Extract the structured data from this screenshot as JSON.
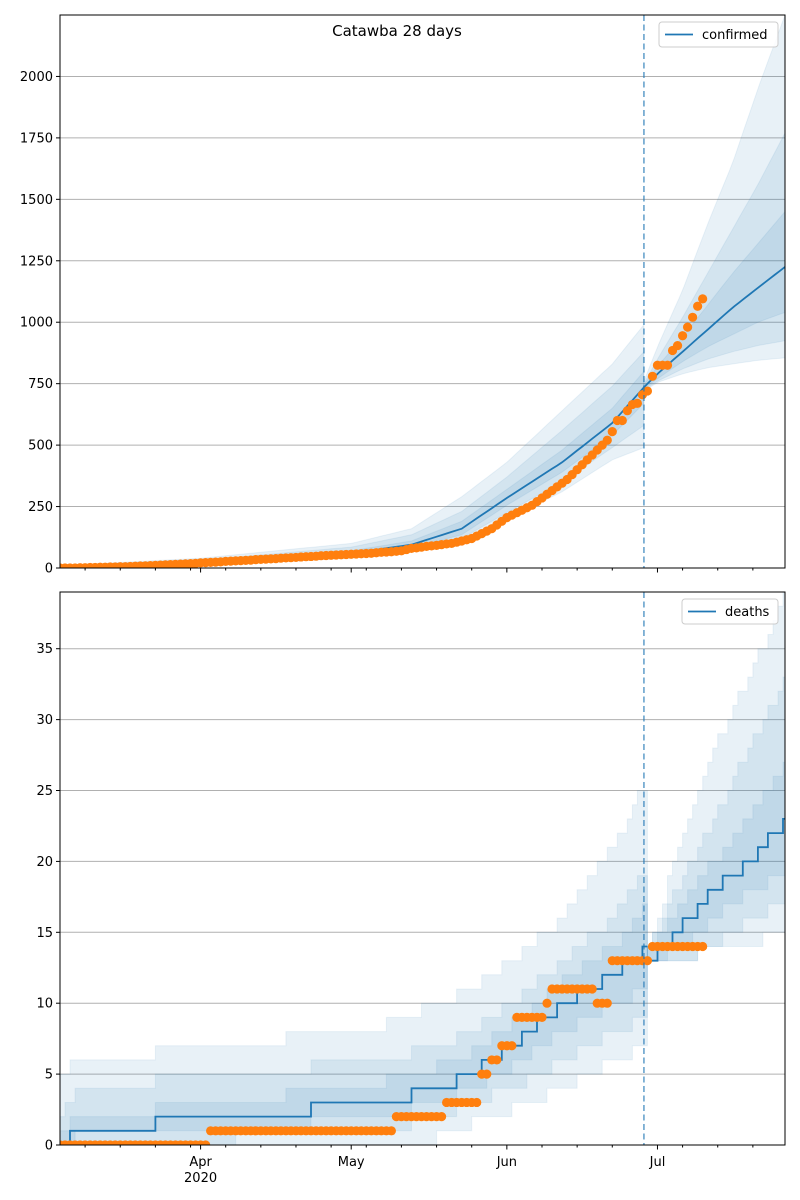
{
  "chart_data": [
    {
      "type": "line",
      "title": "Catawba 28 days",
      "x_origin_date": "2020-03-04",
      "x_unit": "days since origin",
      "xlim": [
        0,
        144.4
      ],
      "ylim": [
        0,
        2250
      ],
      "yticks": [
        0,
        250,
        500,
        750,
        1000,
        1250,
        1500,
        1750,
        2000
      ],
      "ytick_labels": [
        "0",
        "250",
        "500",
        "750",
        "1000",
        "1250",
        "1500",
        "1750",
        "2000"
      ],
      "grid": "horizontal",
      "legend": {
        "label": "confirmed",
        "placement": "top-right"
      },
      "forecast_start_day": 116.3,
      "stepped": false,
      "model_segments": [
        {
          "days": [
            0,
            28,
            58,
            70,
            80,
            89,
            100,
            110,
            116.3
          ],
          "median": [
            0,
            20,
            60,
            95,
            160,
            285,
            430,
            590,
            735
          ],
          "lo95": [
            0,
            10,
            40,
            65,
            110,
            200,
            310,
            440,
            490
          ],
          "lo80": [
            0,
            12,
            45,
            72,
            120,
            225,
            350,
            490,
            580
          ],
          "lo50": [
            0,
            16,
            52,
            82,
            135,
            255,
            390,
            540,
            670
          ],
          "hi50": [
            3,
            25,
            70,
            110,
            190,
            320,
            480,
            650,
            800
          ],
          "hi80": [
            6,
            32,
            85,
            135,
            230,
            370,
            560,
            740,
            880
          ],
          "hi95": [
            10,
            40,
            100,
            160,
            290,
            430,
            640,
            830,
            990
          ]
        },
        {
          "days": [
            116.3,
            119,
            124,
            129,
            134,
            139,
            144.4
          ],
          "median": [
            735,
            790,
            880,
            970,
            1060,
            1140,
            1225
          ],
          "lo95": [
            720,
            755,
            790,
            815,
            830,
            845,
            855
          ],
          "lo80": [
            725,
            760,
            810,
            850,
            880,
            905,
            925
          ],
          "lo50": [
            730,
            770,
            840,
            900,
            950,
            1000,
            1040
          ],
          "hi50": [
            745,
            820,
            940,
            1070,
            1200,
            1320,
            1450
          ],
          "hi80": [
            750,
            850,
            1020,
            1200,
            1380,
            1560,
            1770
          ],
          "hi95": [
            760,
            900,
            1130,
            1400,
            1650,
            1950,
            2250
          ]
        }
      ],
      "observed": [
        0,
        0,
        0,
        0,
        1,
        1,
        2,
        2,
        3,
        3,
        4,
        4,
        5,
        5,
        6,
        7,
        8,
        9,
        10,
        11,
        12,
        13,
        14,
        15,
        16,
        17,
        18,
        19,
        21,
        22,
        23,
        24,
        25,
        27,
        28,
        29,
        30,
        31,
        32,
        34,
        35,
        36,
        37,
        38,
        40,
        41,
        42,
        43,
        45,
        46,
        47,
        48,
        50,
        51,
        52,
        53,
        54,
        55,
        56,
        57,
        58,
        59,
        60,
        62,
        64,
        65,
        66,
        68,
        70,
        75,
        80,
        82,
        85,
        88,
        90,
        92,
        95,
        98,
        100,
        105,
        110,
        115,
        120,
        130,
        140,
        150,
        160,
        175,
        190,
        205,
        215,
        225,
        235,
        245,
        255,
        270,
        285,
        300,
        315,
        330,
        345,
        360,
        380,
        400,
        420,
        440,
        460,
        480,
        500,
        520,
        555,
        600,
        600,
        640,
        665,
        670,
        705,
        720,
        780,
        825,
        825,
        825,
        885,
        905,
        945,
        980,
        1020,
        1065,
        1095
      ]
    },
    {
      "type": "line",
      "title": "",
      "x_origin_date": "2020-03-04",
      "x_unit": "days since origin",
      "xlim": [
        0,
        144.4
      ],
      "ylim": [
        0,
        39
      ],
      "yticks": [
        0,
        5,
        10,
        15,
        20,
        25,
        30,
        35
      ],
      "ytick_labels": [
        "0",
        "5",
        "10",
        "15",
        "20",
        "25",
        "30",
        "35"
      ],
      "grid": "horizontal",
      "legend": {
        "label": "deaths",
        "placement": "top-right"
      },
      "forecast_start_day": 116.3,
      "stepped": true,
      "model_segments": [
        {
          "days": [
            0,
            3,
            35,
            65,
            75,
            82,
            90,
            100,
            110,
            117
          ],
          "median": [
            0,
            1,
            2,
            3,
            4,
            5,
            7,
            10,
            12,
            14
          ],
          "lo95": [
            0,
            0,
            0,
            0,
            0.5,
            1.5,
            2.5,
            4,
            6,
            7
          ],
          "lo80": [
            0,
            0,
            0.5,
            1,
            2,
            3,
            4,
            6,
            8,
            9
          ],
          "lo50": [
            0,
            0.5,
            1,
            2,
            3,
            4,
            5.5,
            8,
            10,
            11
          ],
          "hi50": [
            1,
            2,
            3,
            4.5,
            5.5,
            6.5,
            8.5,
            11.5,
            14,
            17
          ],
          "hi80": [
            2,
            4,
            5,
            6,
            7,
            8,
            10,
            13,
            16,
            20
          ],
          "hi95": [
            5,
            6,
            7,
            8.5,
            10,
            11,
            13,
            16,
            21,
            26
          ]
        },
        {
          "days": [
            117,
            124,
            130,
            137,
            144.4
          ],
          "median": [
            13,
            15.5,
            18,
            20,
            23
          ],
          "lo95": [
            13,
            13,
            14,
            14,
            15.5
          ],
          "lo80": [
            13,
            13,
            14,
            16,
            17
          ],
          "lo50": [
            13,
            14,
            16,
            18,
            19
          ],
          "hi50": [
            13.5,
            17,
            20,
            23,
            27
          ],
          "hi80": [
            14,
            19,
            23,
            28,
            33
          ],
          "hi95": [
            14,
            22,
            28,
            33,
            39
          ]
        }
      ],
      "observed": [
        0,
        0,
        0,
        0,
        0,
        0,
        0,
        0,
        0,
        0,
        0,
        0,
        0,
        0,
        0,
        0,
        0,
        0,
        0,
        0,
        0,
        0,
        0,
        0,
        0,
        0,
        0,
        0,
        0,
        0,
        1,
        1,
        1,
        1,
        1,
        1,
        1,
        1,
        1,
        1,
        1,
        1,
        1,
        1,
        1,
        1,
        1,
        1,
        1,
        1,
        1,
        1,
        1,
        1,
        1,
        1,
        1,
        1,
        1,
        1,
        1,
        1,
        1,
        1,
        1,
        1,
        1,
        2,
        2,
        2,
        2,
        2,
        2,
        2,
        2,
        2,
        2,
        3,
        3,
        3,
        3,
        3,
        3,
        3,
        5,
        5,
        6,
        6,
        7,
        7,
        7,
        9,
        9,
        9,
        9,
        9,
        9,
        10,
        11,
        11,
        11,
        11,
        11,
        11,
        11,
        11,
        11,
        10,
        10,
        10,
        13,
        13,
        13,
        13,
        13,
        13,
        13,
        13,
        14,
        14,
        14,
        14,
        14,
        14,
        14,
        14,
        14,
        14,
        14
      ]
    }
  ],
  "x_axis": {
    "major_ticks": [
      {
        "day": 28,
        "label": "Apr",
        "sublabel": "2020"
      },
      {
        "day": 58,
        "label": "May",
        "sublabel": ""
      },
      {
        "day": 89,
        "label": "Jun",
        "sublabel": ""
      },
      {
        "day": 119,
        "label": "Jul",
        "sublabel": ""
      }
    ],
    "minor_tick_days": [
      5,
      12,
      19,
      26,
      33,
      40,
      47,
      54,
      61,
      68,
      75,
      82,
      96,
      103,
      110,
      124,
      131,
      138
    ]
  },
  "colors": {
    "model": "#1f77b4",
    "observed": "#ff7f0e",
    "band": "#1f77b4",
    "grid": "#b0b0b0"
  }
}
